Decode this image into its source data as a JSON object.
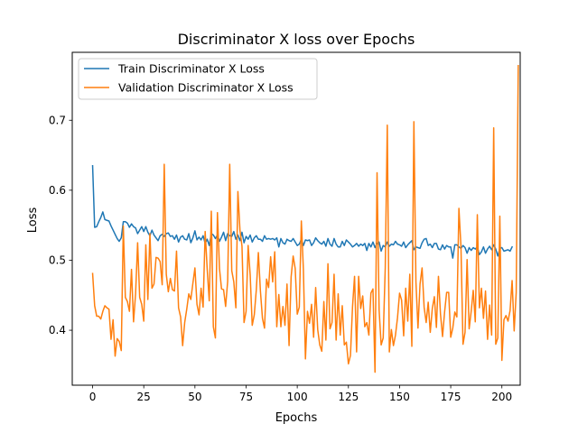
{
  "chart_data": {
    "type": "line",
    "title": "Discriminator X loss over Epochs",
    "xlabel": "Epochs",
    "ylabel": "Loss",
    "xlim": [
      -9.95,
      208.95
    ],
    "ylim": [
      0.3215,
      0.797
    ],
    "xticks": [
      0,
      25,
      50,
      75,
      100,
      125,
      150,
      175,
      200
    ],
    "yticks": [
      0.4,
      0.5,
      0.6,
      0.7
    ],
    "ytick_labels": [
      "0.4",
      "0.5",
      "0.6",
      "0.7"
    ],
    "grid": false,
    "legend": "top-left",
    "series": [
      {
        "name": "Train Discriminator X Loss",
        "color": "#1f77b4",
        "values": [
          0.635,
          0.547,
          0.548,
          0.555,
          0.561,
          0.569,
          0.558,
          0.557,
          0.556,
          0.549,
          0.543,
          0.537,
          0.531,
          0.527,
          0.532,
          0.555,
          0.555,
          0.553,
          0.547,
          0.552,
          0.548,
          0.546,
          0.538,
          0.543,
          0.548,
          0.541,
          0.548,
          0.54,
          0.535,
          0.543,
          0.536,
          0.532,
          0.528,
          0.535,
          0.537,
          0.534,
          0.538,
          0.539,
          0.534,
          0.535,
          0.53,
          0.536,
          0.526,
          0.533,
          0.535,
          0.53,
          0.529,
          0.538,
          0.525,
          0.532,
          0.542,
          0.529,
          0.533,
          0.529,
          0.535,
          0.524,
          0.53,
          0.521,
          0.538,
          0.536,
          0.531,
          0.536,
          0.527,
          0.533,
          0.54,
          0.528,
          0.538,
          0.535,
          0.534,
          0.541,
          0.53,
          0.536,
          0.528,
          0.54,
          0.525,
          0.534,
          0.53,
          0.536,
          0.526,
          0.532,
          0.535,
          0.53,
          0.53,
          0.527,
          0.535,
          0.53,
          0.531,
          0.53,
          0.531,
          0.529,
          0.532,
          0.519,
          0.531,
          0.525,
          0.523,
          0.53,
          0.528,
          0.527,
          0.531,
          0.526,
          0.521,
          0.523,
          0.53,
          0.521,
          0.529,
          0.528,
          0.529,
          0.521,
          0.525,
          0.532,
          0.528,
          0.525,
          0.523,
          0.527,
          0.52,
          0.531,
          0.523,
          0.52,
          0.531,
          0.523,
          0.519,
          0.519,
          0.527,
          0.521,
          0.529,
          0.526,
          0.523,
          0.519,
          0.521,
          0.524,
          0.52,
          0.523,
          0.521,
          0.524,
          0.514,
          0.524,
          0.519,
          0.526,
          0.518,
          0.524,
          0.526,
          0.513,
          0.521,
          0.519,
          0.526,
          0.52,
          0.523,
          0.522,
          0.527,
          0.523,
          0.522,
          0.52,
          0.526,
          0.518,
          0.522,
          0.525,
          0.528,
          0.515,
          0.519,
          0.518,
          0.517,
          0.525,
          0.53,
          0.531,
          0.521,
          0.523,
          0.518,
          0.524,
          0.524,
          0.516,
          0.515,
          0.522,
          0.516,
          0.521,
          0.519,
          0.519,
          0.503,
          0.522,
          0.522,
          0.519,
          0.517,
          0.521,
          0.518,
          0.51,
          0.518,
          0.514,
          0.518,
          0.516,
          0.519,
          0.508,
          0.512,
          0.519,
          0.51,
          0.516,
          0.52,
          0.515,
          0.522,
          0.516,
          0.506,
          0.517,
          0.518,
          0.513,
          0.514,
          0.515,
          0.513,
          0.519
        ]
      },
      {
        "name": "Validation Discriminator X Loss",
        "color": "#ff7f0e",
        "values": [
          0.481,
          0.435,
          0.42,
          0.42,
          0.416,
          0.427,
          0.435,
          0.432,
          0.43,
          0.387,
          0.415,
          0.363,
          0.388,
          0.384,
          0.371,
          0.549,
          0.447,
          0.441,
          0.427,
          0.487,
          0.412,
          0.452,
          0.525,
          0.447,
          0.437,
          0.413,
          0.522,
          0.444,
          0.538,
          0.46,
          0.466,
          0.504,
          0.503,
          0.498,
          0.465,
          0.637,
          0.48,
          0.455,
          0.474,
          0.458,
          0.456,
          0.513,
          0.432,
          0.419,
          0.378,
          0.411,
          0.43,
          0.452,
          0.444,
          0.467,
          0.489,
          0.437,
          0.422,
          0.46,
          0.433,
          0.541,
          0.487,
          0.442,
          0.57,
          0.405,
          0.389,
          0.568,
          0.488,
          0.459,
          0.458,
          0.434,
          0.47,
          0.637,
          0.485,
          0.469,
          0.432,
          0.598,
          0.543,
          0.52,
          0.411,
          0.427,
          0.521,
          0.479,
          0.407,
          0.422,
          0.458,
          0.511,
          0.456,
          0.417,
          0.403,
          0.473,
          0.461,
          0.505,
          0.469,
          0.512,
          0.405,
          0.451,
          0.405,
          0.434,
          0.407,
          0.466,
          0.378,
          0.476,
          0.506,
          0.488,
          0.423,
          0.433,
          0.556,
          0.487,
          0.359,
          0.427,
          0.41,
          0.437,
          0.39,
          0.461,
          0.401,
          0.379,
          0.37,
          0.441,
          0.386,
          0.495,
          0.402,
          0.411,
          0.48,
          0.386,
          0.452,
          0.393,
          0.435,
          0.379,
          0.383,
          0.352,
          0.364,
          0.433,
          0.477,
          0.369,
          0.477,
          0.431,
          0.449,
          0.405,
          0.411,
          0.393,
          0.453,
          0.459,
          0.34,
          0.625,
          0.429,
          0.379,
          0.389,
          0.489,
          0.693,
          0.369,
          0.401,
          0.378,
          0.393,
          0.418,
          0.453,
          0.443,
          0.392,
          0.46,
          0.413,
          0.48,
          0.377,
          0.698,
          0.469,
          0.403,
          0.466,
          0.489,
          0.433,
          0.411,
          0.44,
          0.397,
          0.431,
          0.448,
          0.404,
          0.477,
          0.423,
          0.391,
          0.426,
          0.454,
          0.454,
          0.39,
          0.403,
          0.426,
          0.419,
          0.574,
          0.52,
          0.38,
          0.397,
          0.501,
          0.402,
          0.427,
          0.457,
          0.412,
          0.565,
          0.432,
          0.46,
          0.417,
          0.456,
          0.387,
          0.436,
          0.393,
          0.689,
          0.38,
          0.389,
          0.563,
          0.357,
          0.415,
          0.421,
          0.413,
          0.428,
          0.471,
          0.399,
          0.454,
          0.778
        ]
      }
    ]
  }
}
